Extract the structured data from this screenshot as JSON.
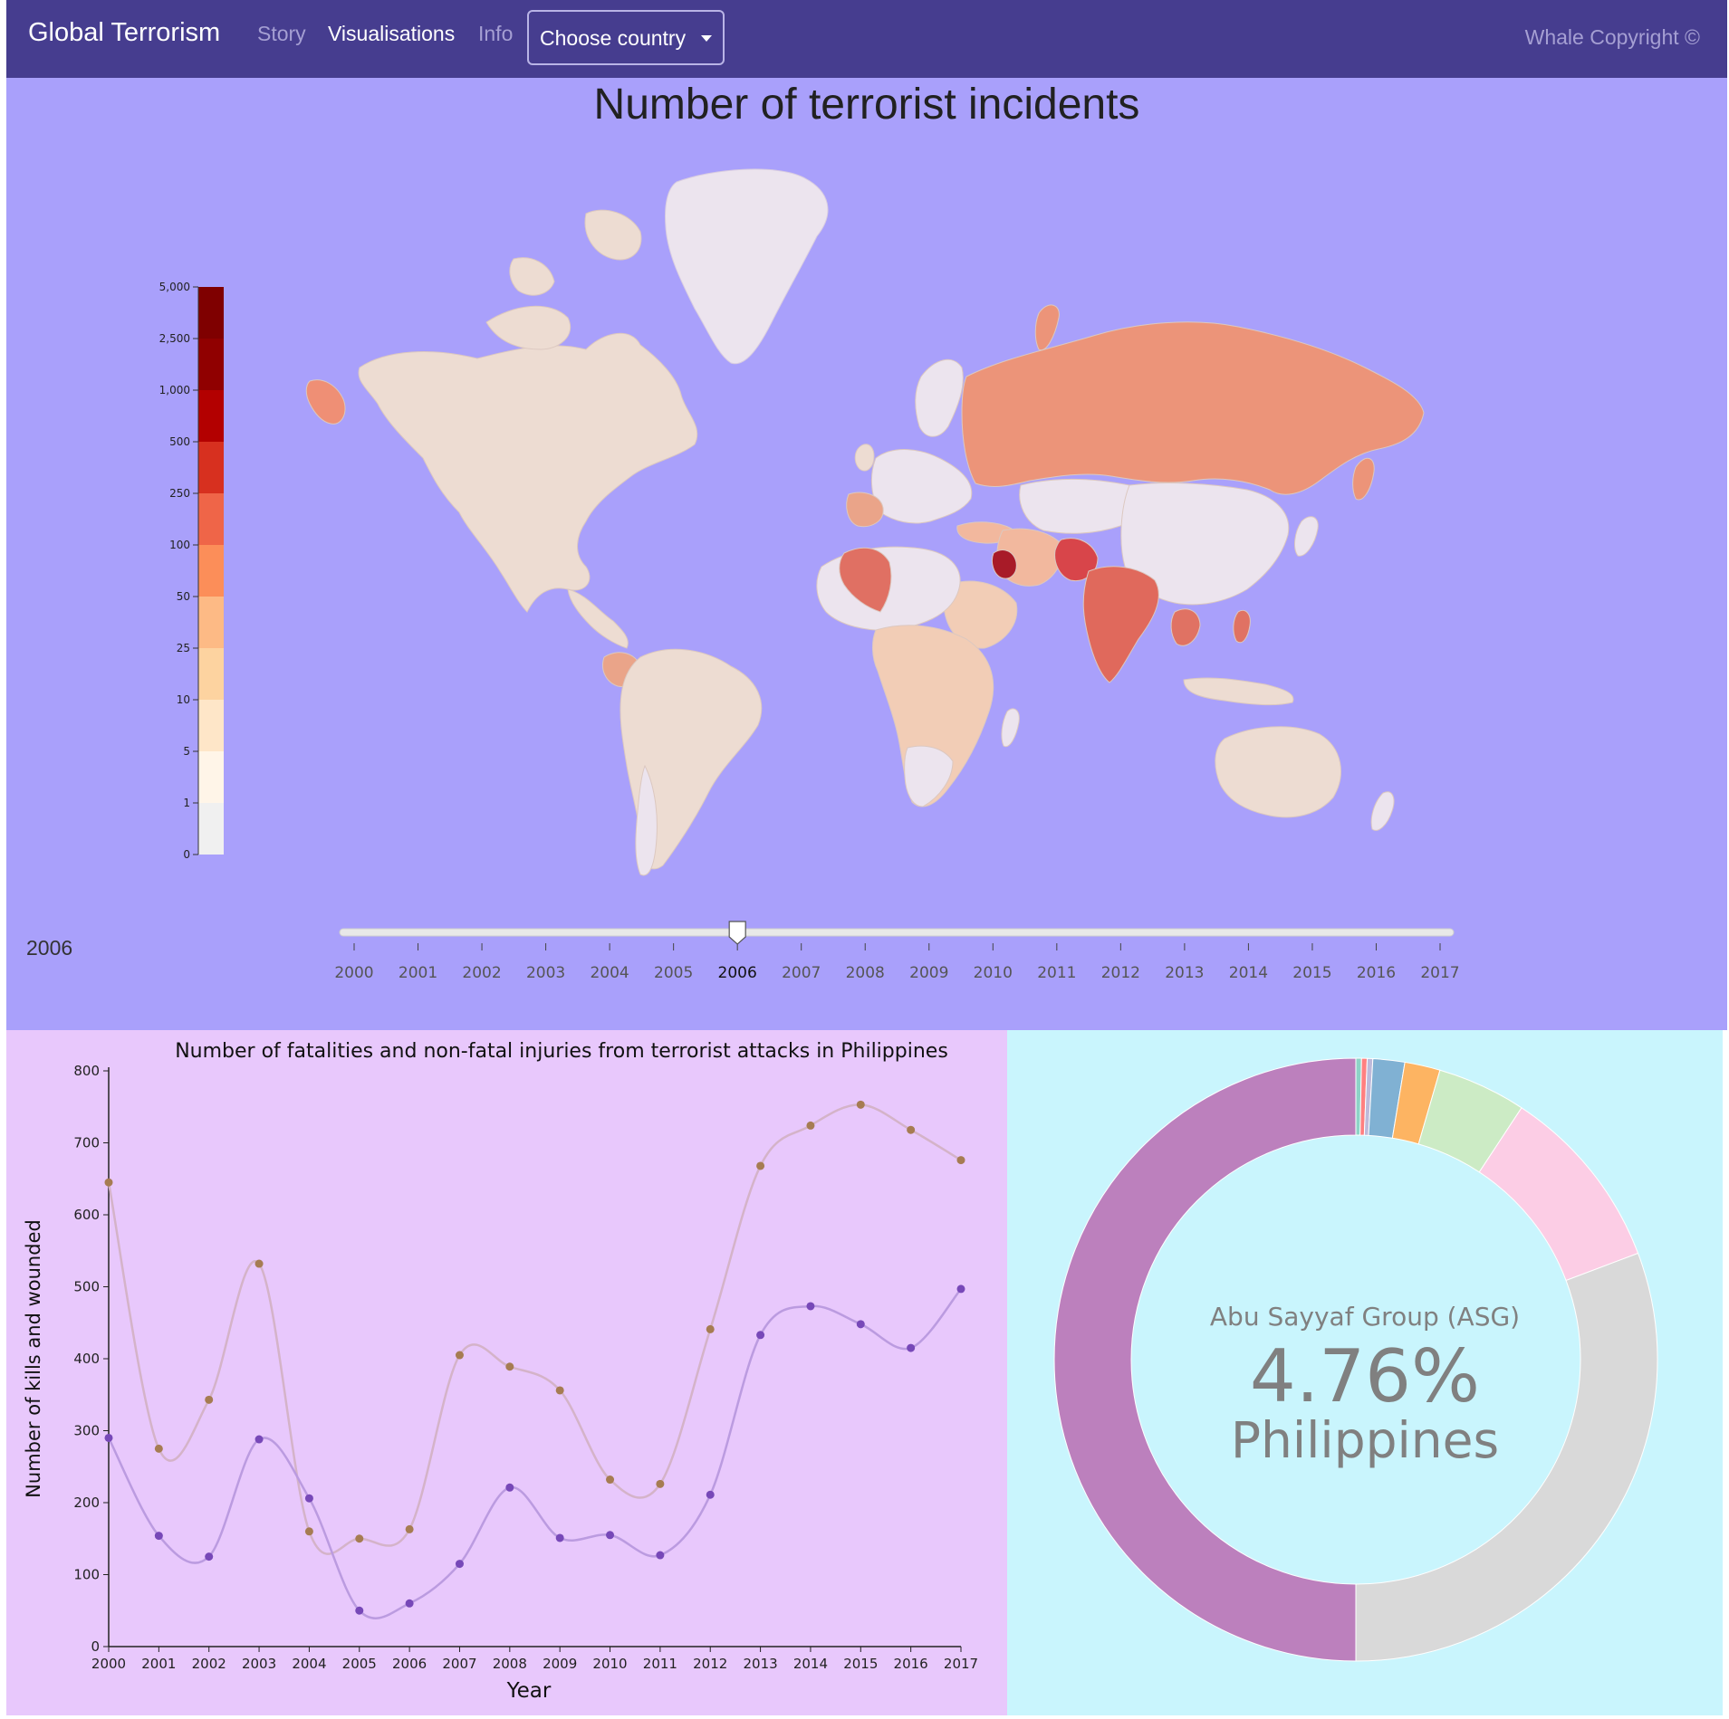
{
  "navbar": {
    "brand": "Global Terrorism",
    "links": [
      {
        "label": "Story",
        "active": false
      },
      {
        "label": "Visualisations",
        "active": true
      },
      {
        "label": "Info",
        "active": false
      }
    ],
    "dropdown_label": "Choose country",
    "copyright": "Whale Copyright ©"
  },
  "map": {
    "title": "Number of terrorist incidents",
    "legend": {
      "ticks": [
        "0",
        "1",
        "5",
        "10",
        "25",
        "50",
        "100",
        "250",
        "500",
        "1,000",
        "2,500",
        "5,000"
      ],
      "colors": [
        "#f0f0f0",
        "#fff5e8",
        "#fee6c8",
        "#fdd3a0",
        "#fdba85",
        "#fc8e59",
        "#ef6548",
        "#d7301f",
        "#b30000",
        "#900000",
        "#7f0000"
      ]
    },
    "selected_year_display": "2006",
    "slider": {
      "years": [
        "2000",
        "2001",
        "2002",
        "2003",
        "2004",
        "2005",
        "2006",
        "2007",
        "2008",
        "2009",
        "2010",
        "2011",
        "2012",
        "2013",
        "2014",
        "2015",
        "2016",
        "2017"
      ],
      "selected": "2006"
    }
  },
  "line_chart": {
    "title": "Number of fatalities and non-fatal injuries from terrorist attacks in Philippines",
    "xlabel": "Year",
    "ylabel": "Number of kills and wounded"
  },
  "chart_data": [
    {
      "type": "line",
      "title": "Number of fatalities and non-fatal injuries from terrorist attacks in Philippines",
      "xlabel": "Year",
      "ylabel": "Number of kills and wounded",
      "ylim": [
        0,
        800
      ],
      "y_ticks": [
        0,
        100,
        200,
        300,
        400,
        500,
        600,
        700,
        800
      ],
      "x": [
        "2000",
        "2001",
        "2002",
        "2003",
        "2004",
        "2005",
        "2006",
        "2007",
        "2008",
        "2009",
        "2010",
        "2011",
        "2012",
        "2013",
        "2014",
        "2015",
        "2016",
        "2017"
      ],
      "series": [
        {
          "color": "#a67c52",
          "line_color": "#d4b3c8",
          "values": [
            645,
            275,
            343,
            532,
            160,
            150,
            163,
            405,
            389,
            356,
            232,
            226,
            441,
            668,
            724,
            753,
            718,
            676
          ]
        },
        {
          "color": "#7748b8",
          "line_color": "#bb9be0",
          "values": [
            290,
            154,
            125,
            288,
            206,
            50,
            60,
            115,
            221,
            151,
            155,
            127,
            211,
            433,
            473,
            448,
            415,
            497
          ]
        }
      ]
    },
    {
      "type": "pie",
      "center_label": {
        "group": "Abu Sayyaf Group (ASG)",
        "percentage": "4.76%",
        "country": "Philippines"
      },
      "slices": [
        {
          "value": 0.3,
          "color": "#8dd3c7"
        },
        {
          "value": 0.3,
          "color": "#ff8080"
        },
        {
          "value": 0.3,
          "color": "#bebada"
        },
        {
          "value": 1.7,
          "color": "#80b1d3"
        },
        {
          "value": 1.9,
          "color": "#fdb462"
        },
        {
          "value": 4.76,
          "color": "#ccebc5"
        },
        {
          "value": 10.0,
          "color": "#fccde5"
        },
        {
          "value": 30.74,
          "color": "#d9d9d9"
        },
        {
          "value": 50.0,
          "color": "#bc80bd"
        }
      ]
    }
  ]
}
